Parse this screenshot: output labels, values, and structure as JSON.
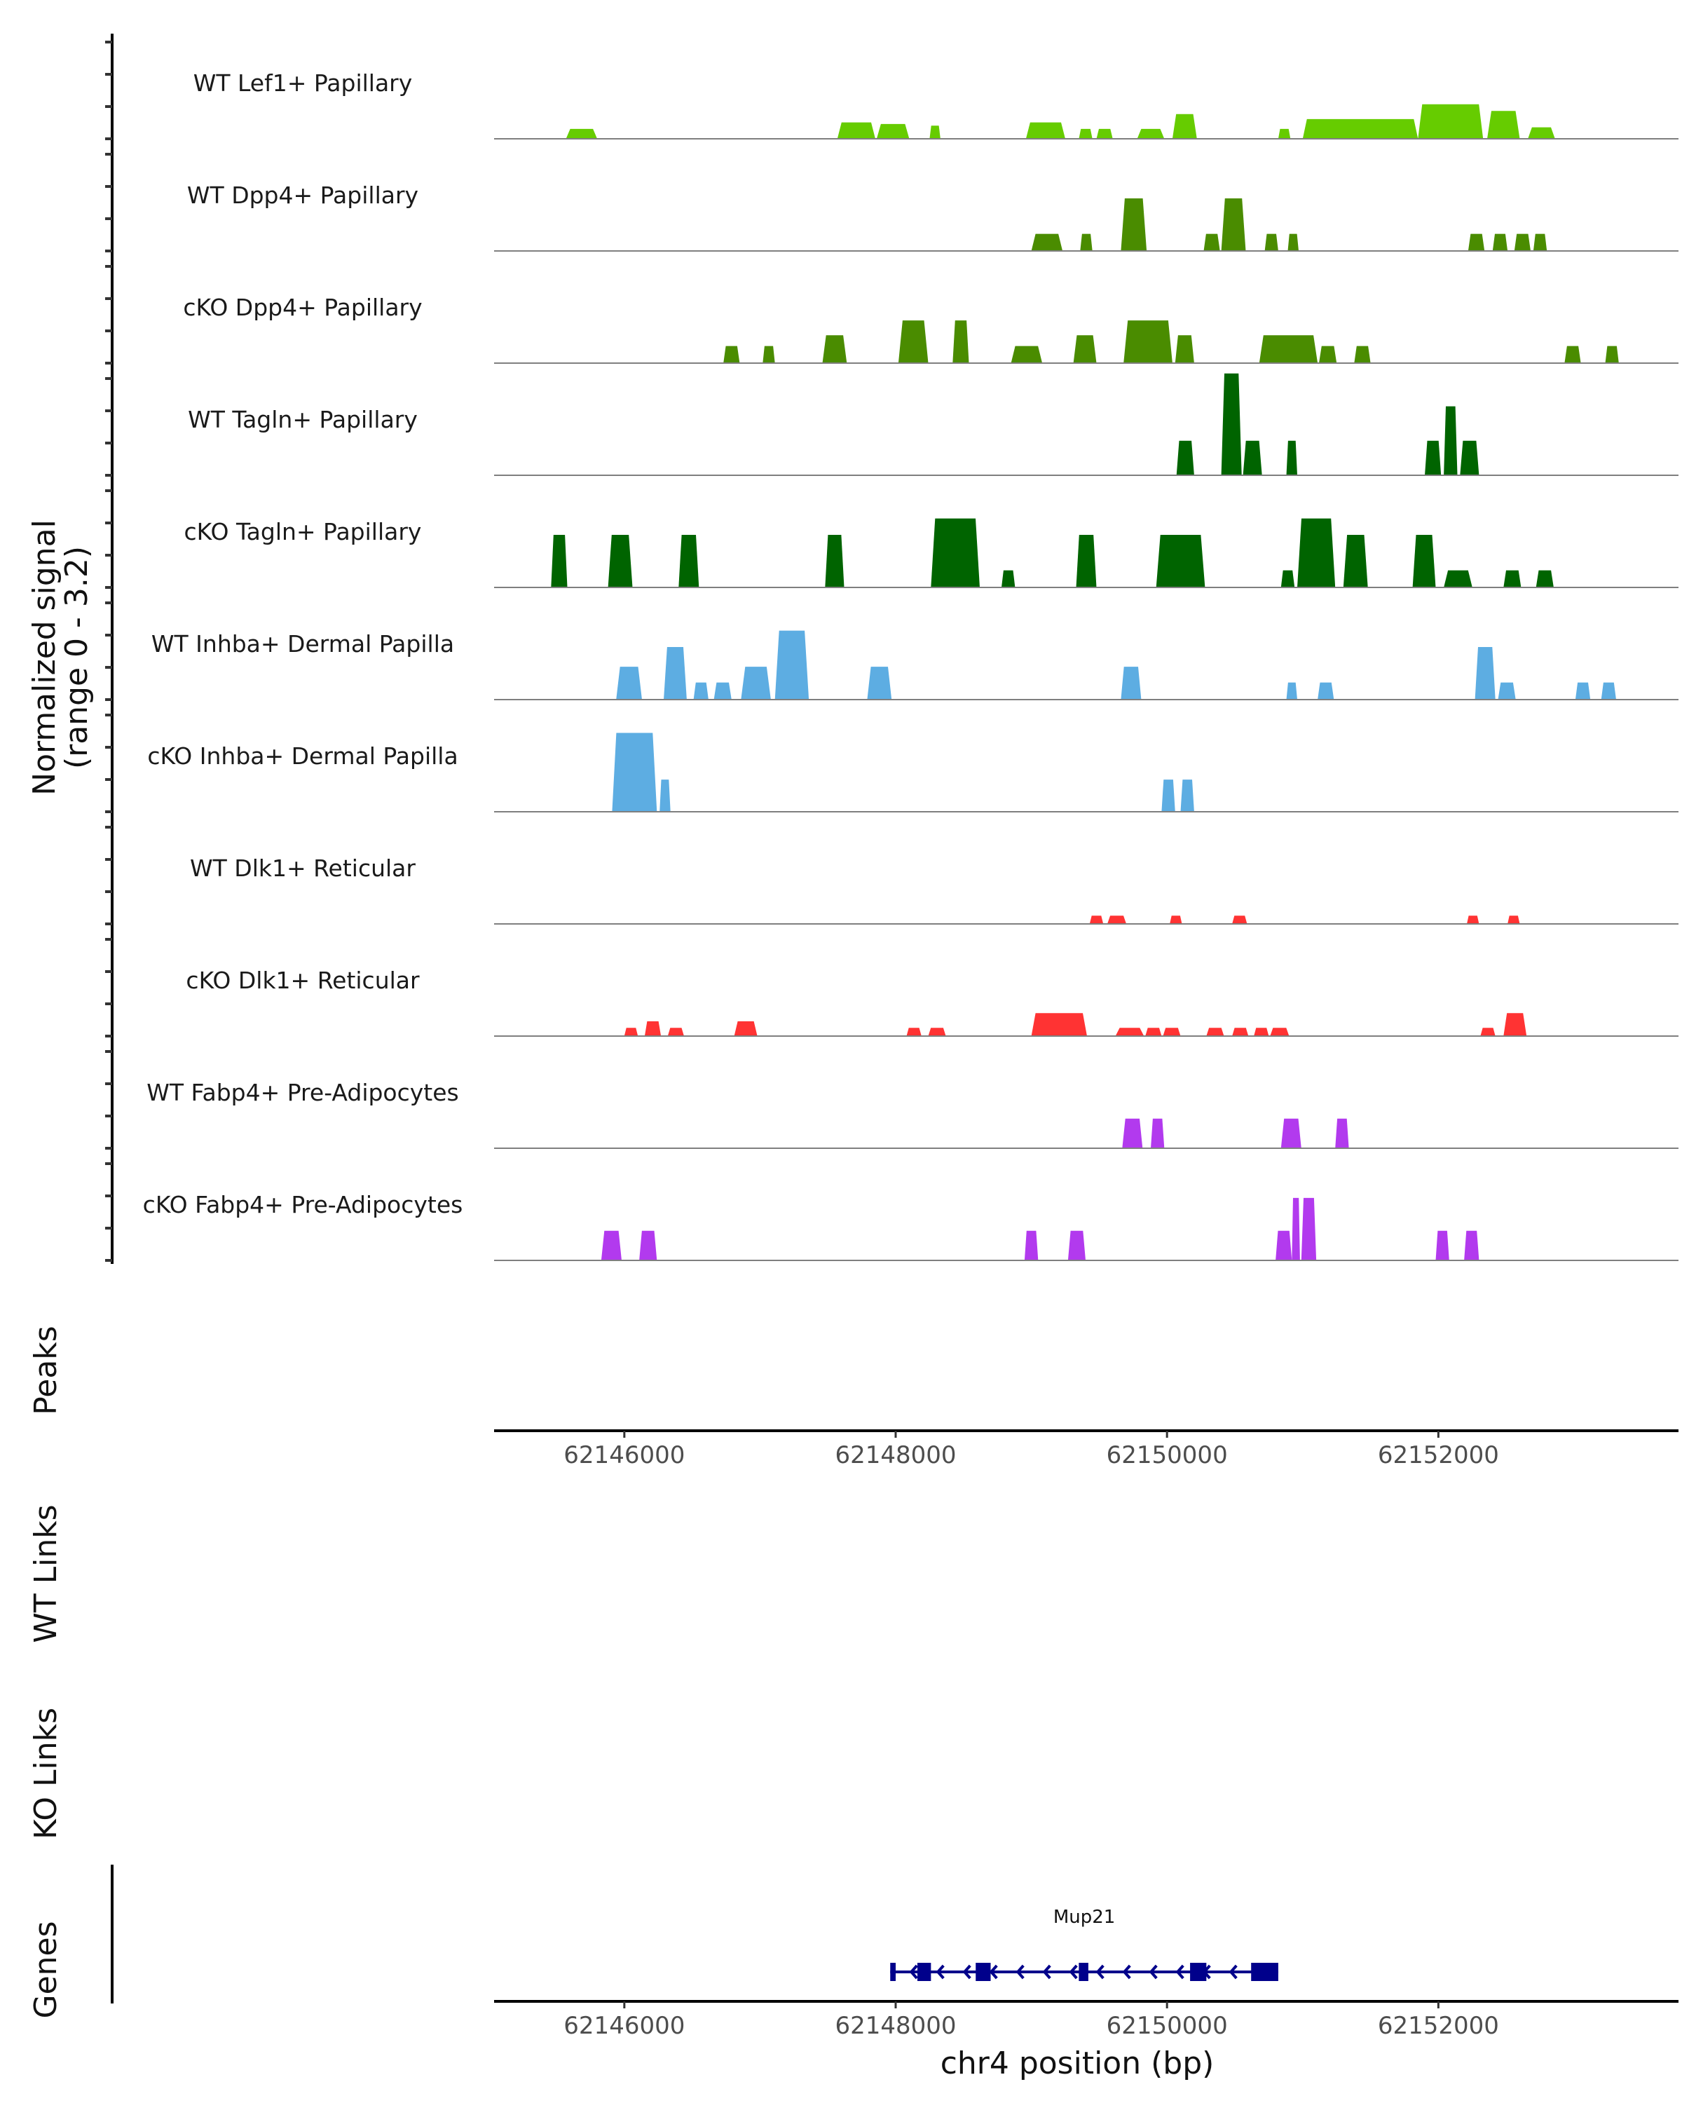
{
  "chart_data": {
    "type": "area",
    "title": "",
    "ylabel": "Normalized signal",
    "ylabel_range": "(range 0 - 3.2)",
    "ylim": [
      0,
      3.2
    ],
    "xlabel": "chr4 position (bp)",
    "xlim": [
      62145040,
      62153770
    ],
    "xticks": [
      62146000,
      62148000,
      62150000,
      62152000
    ],
    "xtick_labels": [
      "62146000",
      "62148000",
      "62150000",
      "62152000"
    ],
    "tracks": [
      {
        "name": "WT Lef1+ Papillary",
        "color": "#66cc00",
        "peaks": [
          [
            62145570,
            62145800,
            0.3
          ],
          [
            62147570,
            62147850,
            0.5
          ],
          [
            62147860,
            62148100,
            0.45
          ],
          [
            62148250,
            62148330,
            0.4
          ],
          [
            62148960,
            62149250,
            0.5
          ],
          [
            62149350,
            62149450,
            0.3
          ],
          [
            62149480,
            62149600,
            0.3
          ],
          [
            62149780,
            62149980,
            0.3
          ],
          [
            62150040,
            62150220,
            0.75
          ],
          [
            62150820,
            62150910,
            0.3
          ],
          [
            62151000,
            62151850,
            0.6
          ],
          [
            62151850,
            62152330,
            1.05
          ],
          [
            62152360,
            62152600,
            0.85
          ],
          [
            62152660,
            62152860,
            0.35
          ]
        ]
      },
      {
        "name": "WT Dpp4+ Papillary",
        "color": "#4a8c00",
        "peaks": [
          [
            62149000,
            62149230,
            0.52
          ],
          [
            62149360,
            62149450,
            0.52
          ],
          [
            62149660,
            62149850,
            1.6
          ],
          [
            62150270,
            62150390,
            0.52
          ],
          [
            62150400,
            62150580,
            1.6
          ],
          [
            62150720,
            62150820,
            0.52
          ],
          [
            62150890,
            62150970,
            0.52
          ],
          [
            62152220,
            62152340,
            0.52
          ],
          [
            62152400,
            62152510,
            0.52
          ],
          [
            62152560,
            62152680,
            0.52
          ],
          [
            62152700,
            62152800,
            0.52
          ]
        ]
      },
      {
        "name": "cKO Dpp4+ Papillary",
        "color": "#4a8c00",
        "peaks": [
          [
            62146730,
            62146850,
            0.52
          ],
          [
            62147020,
            62147110,
            0.52
          ],
          [
            62147460,
            62147640,
            0.85
          ],
          [
            62148020,
            62148240,
            1.3
          ],
          [
            62148420,
            62148540,
            1.3
          ],
          [
            62148850,
            62149080,
            0.52
          ],
          [
            62149310,
            62149480,
            0.85
          ],
          [
            62149680,
            62150040,
            1.3
          ],
          [
            62150060,
            62150200,
            0.85
          ],
          [
            62150680,
            62151110,
            0.85
          ],
          [
            62151120,
            62151250,
            0.52
          ],
          [
            62151380,
            62151500,
            0.52
          ],
          [
            62152930,
            62153050,
            0.52
          ],
          [
            62153230,
            62153330,
            0.52
          ]
        ]
      },
      {
        "name": "WT Tagln+ Papillary",
        "color": "#006400",
        "peaks": [
          [
            62150070,
            62150200,
            1.05
          ],
          [
            62150400,
            62150550,
            3.1
          ],
          [
            62150560,
            62150700,
            1.05
          ],
          [
            62150880,
            62150960,
            1.05
          ],
          [
            62151900,
            62152020,
            1.05
          ],
          [
            62152040,
            62152140,
            2.1
          ],
          [
            62152160,
            62152300,
            1.05
          ]
        ]
      },
      {
        "name": "cKO Tagln+ Papillary",
        "color": "#006400",
        "peaks": [
          [
            62145460,
            62145580,
            1.6
          ],
          [
            62145880,
            62146060,
            1.6
          ],
          [
            62146400,
            62146550,
            1.6
          ],
          [
            62147480,
            62147620,
            1.6
          ],
          [
            62148260,
            62148620,
            2.1
          ],
          [
            62148780,
            62148880,
            0.52
          ],
          [
            62149330,
            62149480,
            1.6
          ],
          [
            62149920,
            62150280,
            1.6
          ],
          [
            62150840,
            62150940,
            0.52
          ],
          [
            62150960,
            62151240,
            2.1
          ],
          [
            62151300,
            62151480,
            1.6
          ],
          [
            62151810,
            62151980,
            1.6
          ],
          [
            62152040,
            62152250,
            0.52
          ],
          [
            62152480,
            62152610,
            0.52
          ],
          [
            62152720,
            62152850,
            0.52
          ]
        ]
      },
      {
        "name": "WT Inhba+ Dermal Papilla",
        "color": "#5dade2",
        "peaks": [
          [
            62145940,
            62146130,
            1.0
          ],
          [
            62146290,
            62146460,
            1.6
          ],
          [
            62146510,
            62146620,
            0.52
          ],
          [
            62146660,
            62146790,
            0.52
          ],
          [
            62146860,
            62147080,
            1.0
          ],
          [
            62147110,
            62147360,
            2.1
          ],
          [
            62147790,
            62147970,
            1.0
          ],
          [
            62149660,
            62149810,
            1.0
          ],
          [
            62150880,
            62150960,
            0.52
          ],
          [
            62151110,
            62151230,
            0.52
          ],
          [
            62152270,
            62152420,
            1.6
          ],
          [
            62152440,
            62152570,
            0.52
          ],
          [
            62153010,
            62153120,
            0.52
          ],
          [
            62153200,
            62153310,
            0.52
          ]
        ]
      },
      {
        "name": "cKO Inhba+ Dermal Papilla",
        "color": "#5dade2",
        "peaks": [
          [
            62145910,
            62146240,
            2.4
          ],
          [
            62146260,
            62146340,
            0.98
          ],
          [
            62149960,
            62150060,
            0.98
          ],
          [
            62150100,
            62150200,
            0.98
          ]
        ]
      },
      {
        "name": "WT Dlk1+ Reticular",
        "color": "#ff3333",
        "peaks": [
          [
            62149430,
            62149530,
            0.25
          ],
          [
            62149560,
            62149700,
            0.25
          ],
          [
            62150020,
            62150110,
            0.25
          ],
          [
            62150480,
            62150590,
            0.25
          ],
          [
            62152210,
            62152300,
            0.25
          ],
          [
            62152510,
            62152600,
            0.25
          ]
        ]
      },
      {
        "name": "cKO Dlk1+ Reticular",
        "color": "#ff3333",
        "peaks": [
          [
            62146000,
            62146100,
            0.25
          ],
          [
            62146150,
            62146270,
            0.45
          ],
          [
            62146320,
            62146440,
            0.25
          ],
          [
            62146810,
            62146980,
            0.45
          ],
          [
            62148080,
            62148190,
            0.25
          ],
          [
            62148240,
            62148370,
            0.25
          ],
          [
            62149000,
            62149410,
            0.7
          ],
          [
            62149620,
            62149830,
            0.25
          ],
          [
            62149840,
            62149960,
            0.25
          ],
          [
            62149970,
            62150100,
            0.25
          ],
          [
            62150290,
            62150420,
            0.25
          ],
          [
            62150480,
            62150600,
            0.25
          ],
          [
            62150640,
            62150750,
            0.25
          ],
          [
            62150760,
            62150900,
            0.25
          ],
          [
            62152310,
            62152420,
            0.25
          ],
          [
            62152480,
            62152650,
            0.7
          ]
        ]
      },
      {
        "name": "WT Fabp4+ Pre-Adipocytes",
        "color": "#b23aee",
        "peaks": [
          [
            62149670,
            62149820,
            0.9
          ],
          [
            62149880,
            62149980,
            0.9
          ],
          [
            62150840,
            62150990,
            0.9
          ],
          [
            62151240,
            62151340,
            0.9
          ]
        ]
      },
      {
        "name": "cKO Fabp4+ Pre-Adipocytes",
        "color": "#b23aee",
        "peaks": [
          [
            62145830,
            62145980,
            0.9
          ],
          [
            62146110,
            62146240,
            0.9
          ],
          [
            62148950,
            62149050,
            0.9
          ],
          [
            62149270,
            62149400,
            0.9
          ],
          [
            62150800,
            62150920,
            0.9
          ],
          [
            62150920,
            62150980,
            1.9
          ],
          [
            62150990,
            62151100,
            1.9
          ],
          [
            62151980,
            62152080,
            0.9
          ],
          [
            62152190,
            62152300,
            0.9
          ]
        ]
      }
    ],
    "annotation_tracks": [
      "Peaks",
      "WT Links",
      "KO Links"
    ],
    "genes": [
      {
        "name": "Mup21",
        "start": 62147960,
        "end": 62150820,
        "strand": "-",
        "color": "#00008b",
        "exons": [
          [
            62147960,
            62148000
          ],
          [
            62148160,
            62148260
          ],
          [
            62148590,
            62148700
          ],
          [
            62149350,
            62149420
          ],
          [
            62150170,
            62150290
          ],
          [
            62150620,
            62150820
          ]
        ]
      }
    ],
    "genes_track_label": "Genes"
  }
}
